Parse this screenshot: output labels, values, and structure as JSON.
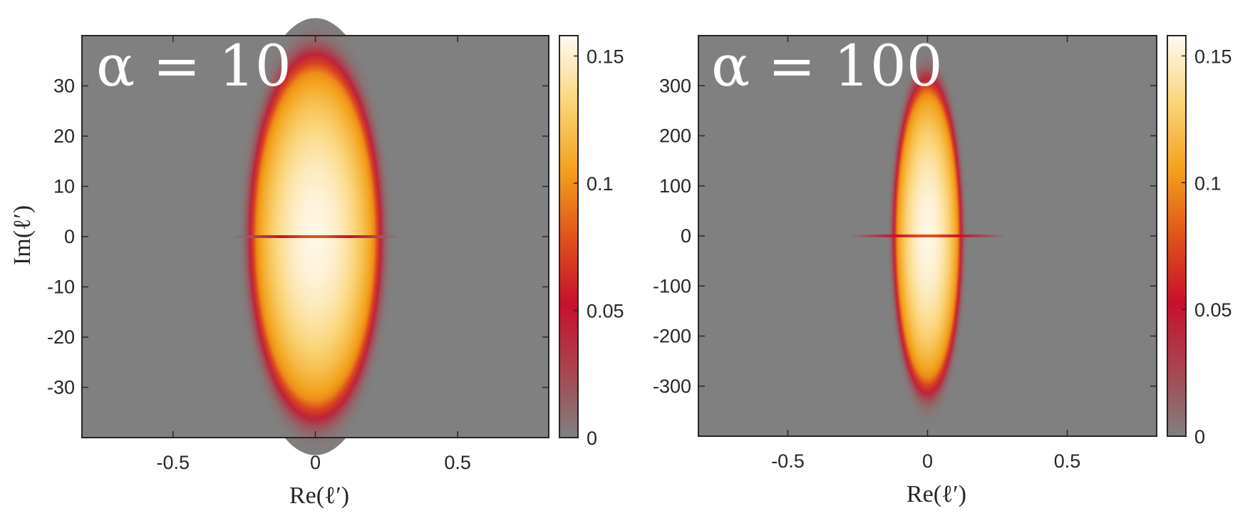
{
  "chart_data": [
    {
      "type": "heatmap",
      "title": "α = 10",
      "xlabel": "Re(ℓ′)",
      "ylabel": "Im(ℓ′)",
      "xlim": [
        -0.82,
        0.82
      ],
      "ylim": [
        -40,
        40
      ],
      "xticks": [
        -0.5,
        0,
        0.5
      ],
      "xtick_labels": [
        "-0.5",
        "0",
        "0.5"
      ],
      "yticks": [
        30,
        20,
        10,
        0,
        -10,
        -20,
        -30
      ],
      "ytick_labels": [
        "30",
        "20",
        "10",
        "0",
        "-10",
        "-20",
        "-30"
      ],
      "colorbar": {
        "range": [
          0,
          0.158
        ],
        "ticks": [
          0.15,
          0.1,
          0.05,
          0
        ],
        "tick_labels": [
          "0.15",
          "0.1",
          "0.05",
          "0"
        ],
        "colormap": [
          "#808080",
          "#a8454f",
          "#c8102e",
          "#e0531a",
          "#f3a21c",
          "#fad579",
          "#fffaf2"
        ]
      },
      "distribution": {
        "center": [
          0,
          0
        ],
        "re_halfwidth": 0.19,
        "im_halfwidth": 30,
        "peak": 0.155,
        "real_axis_line_extent": [
          -0.3,
          0.3
        ]
      },
      "grid": false
    },
    {
      "type": "heatmap",
      "title": "α = 100",
      "xlabel": "Re(ℓ′)",
      "ylabel": "",
      "xlim": [
        -0.82,
        0.82
      ],
      "ylim": [
        -400,
        400
      ],
      "xticks": [
        -0.5,
        0,
        0.5
      ],
      "xtick_labels": [
        "-0.5",
        "0",
        "0.5"
      ],
      "yticks": [
        300,
        200,
        100,
        0,
        -100,
        -200,
        -300
      ],
      "ytick_labels": [
        "300",
        "200",
        "100",
        "0",
        "-100",
        "-200",
        "-300"
      ],
      "colorbar": {
        "range": [
          0,
          0.158
        ],
        "ticks": [
          0.15,
          0.1,
          0.05,
          0
        ],
        "tick_labels": [
          "0.15",
          "0.1",
          "0.05",
          "0"
        ],
        "colormap": [
          "#808080",
          "#a8454f",
          "#c8102e",
          "#e0531a",
          "#f3a21c",
          "#fad579",
          "#fffaf2"
        ]
      },
      "distribution": {
        "center": [
          0,
          0
        ],
        "re_halfwidth": 0.1,
        "im_halfwidth": 260,
        "peak": 0.155,
        "real_axis_line_extent": [
          -0.28,
          0.28
        ]
      },
      "grid": false
    }
  ]
}
